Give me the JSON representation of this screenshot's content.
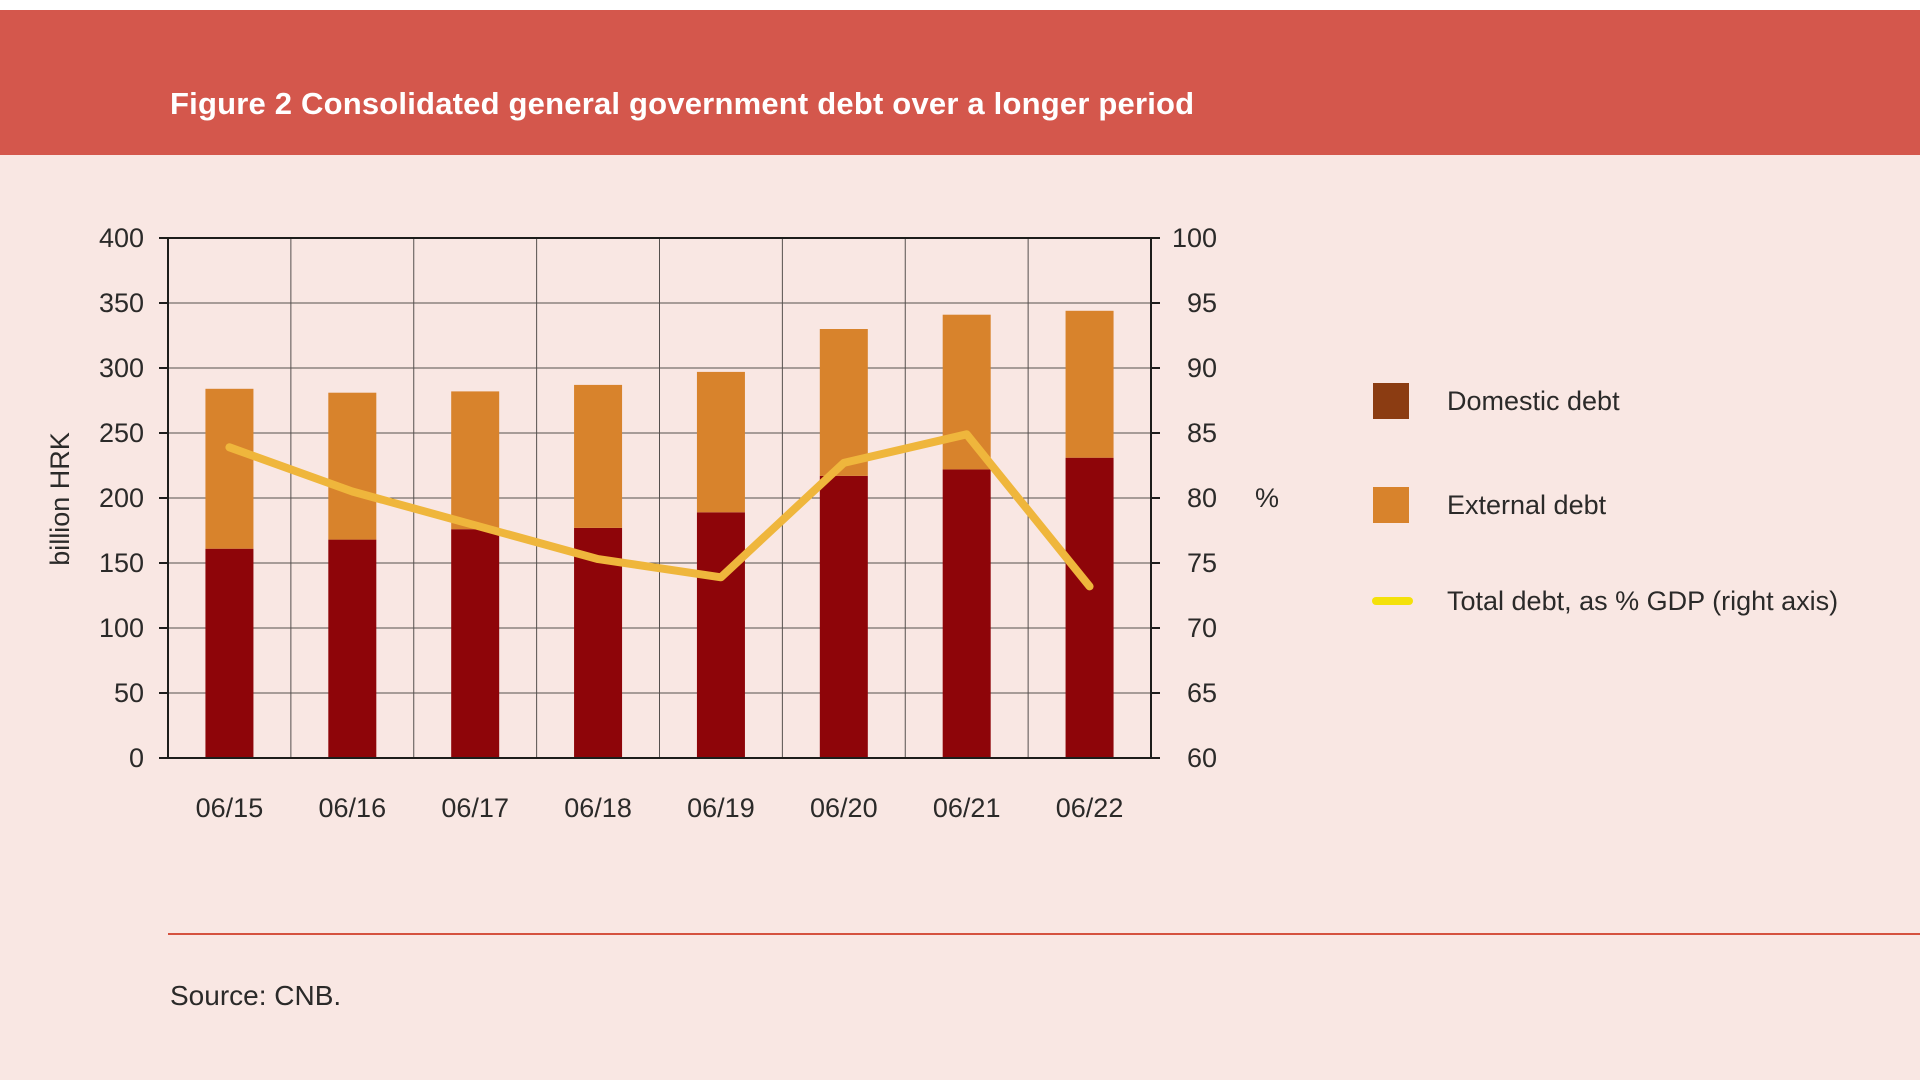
{
  "title": "Figure 2 Consolidated general government debt over a longer period",
  "source": "Source: CNB.",
  "legend": {
    "domestic": "Domestic debt",
    "external": "External debt",
    "line": "Total debt, as % GDP (right axis)"
  },
  "colors": {
    "banner": "#D4574C",
    "background": "#F9E7E3",
    "domestic_bar": "#8E0509",
    "external_bar": "#D8832C",
    "domestic_legend": "#8B3C12",
    "line": "#EFB63C",
    "line_legend": "#F4E10A",
    "axis": "#1D1D1B",
    "grid": "#55504E",
    "text": "#2B2A29",
    "divider": "#D5523F"
  },
  "chart_data": {
    "type": "bar",
    "subtype": "stacked-bars-with-line",
    "title": "Figure 2 Consolidated general government debt over a longer period",
    "categories": [
      "06/15",
      "06/16",
      "06/17",
      "06/18",
      "06/19",
      "06/20",
      "06/21",
      "06/22"
    ],
    "series": [
      {
        "name": "Domestic debt",
        "type": "bar",
        "stack": "debt",
        "axis": "left",
        "values": [
          161,
          168,
          176,
          177,
          189,
          217,
          222,
          231
        ]
      },
      {
        "name": "External debt",
        "type": "bar",
        "stack": "debt",
        "axis": "left",
        "values": [
          123,
          113,
          106,
          110,
          108,
          113,
          119,
          113
        ]
      },
      {
        "name": "Total debt, as % GDP (right axis)",
        "type": "line",
        "axis": "right",
        "values": [
          83.9,
          80.5,
          77.9,
          75.3,
          73.9,
          82.7,
          84.9,
          73.2
        ]
      }
    ],
    "stack_totals": [
      284,
      281,
      282,
      287,
      297,
      330,
      341,
      344
    ],
    "left_axis": {
      "label": "billion HRK",
      "min": 0,
      "max": 400,
      "step": 50,
      "ticks": [
        400,
        350,
        300,
        250,
        200,
        150,
        100,
        50,
        0
      ]
    },
    "right_axis": {
      "label": "%",
      "min": 60,
      "max": 100,
      "step": 5,
      "ticks": [
        100,
        95,
        90,
        85,
        80,
        75,
        70,
        65,
        60
      ]
    },
    "grid": true,
    "legend_position": "right",
    "source": "Source: CNB."
  }
}
